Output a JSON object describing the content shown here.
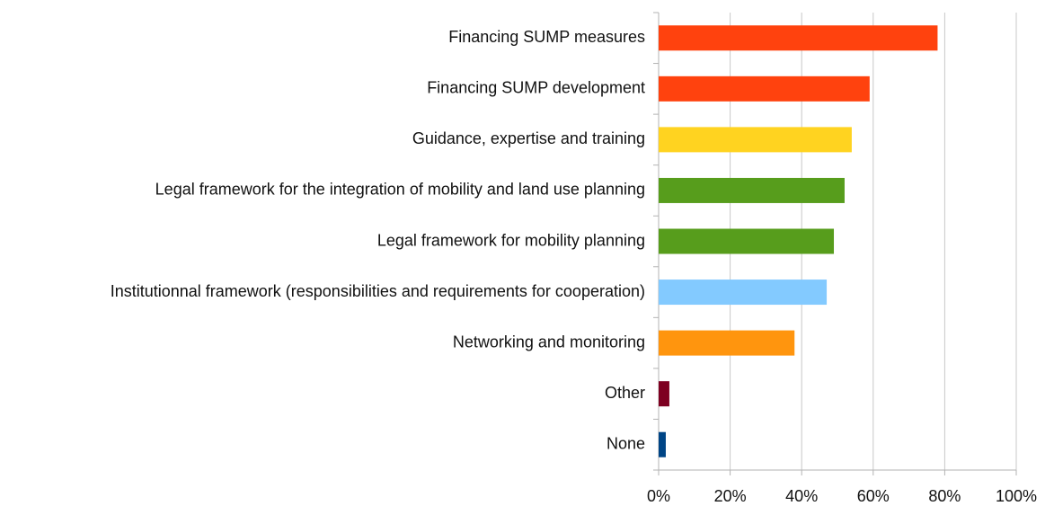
{
  "chart_data": {
    "type": "barh",
    "categories": [
      "Financing SUMP measures",
      "Financing SUMP development",
      "Guidance, expertise and training",
      "Legal framework for the integration of mobility and land use planning",
      "Legal framework for mobility planning",
      "Institutionnal framework (responsibilities and requirements for cooperation)",
      "Networking and monitoring",
      "Other",
      "None"
    ],
    "values": [
      78,
      59,
      54,
      52,
      49,
      47,
      38,
      3,
      2
    ],
    "colors": [
      "#ff420e",
      "#ff420e",
      "#ffd320",
      "#579d1c",
      "#579d1c",
      "#83caff",
      "#ff950e",
      "#7e0021",
      "#004586"
    ],
    "xlim": [
      0,
      100
    ],
    "xticks": [
      {
        "value": 0,
        "label": "0%"
      },
      {
        "value": 20,
        "label": "20%"
      },
      {
        "value": 40,
        "label": "40%"
      },
      {
        "value": 60,
        "label": "60%"
      },
      {
        "value": 80,
        "label": "80%"
      },
      {
        "value": 100,
        "label": "100%"
      }
    ],
    "grid": true
  }
}
